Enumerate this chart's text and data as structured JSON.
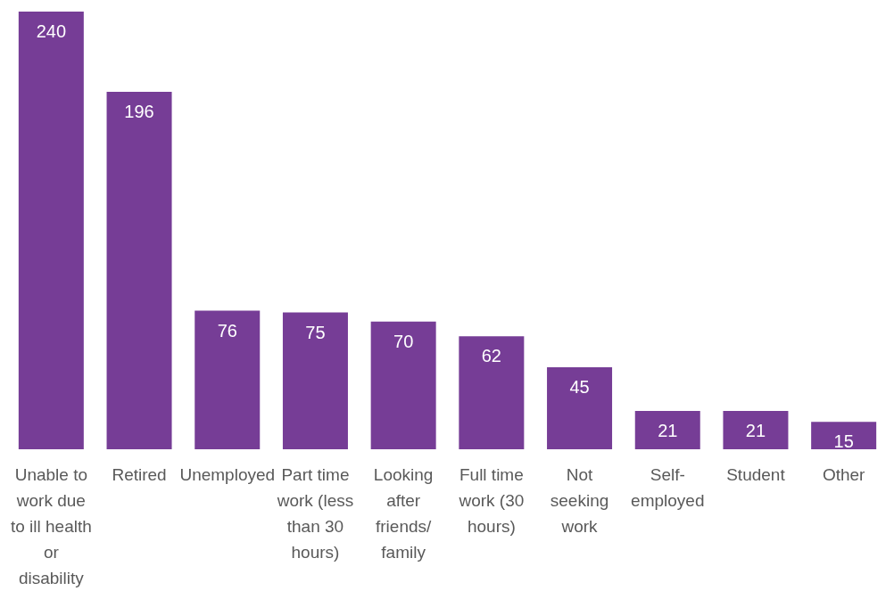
{
  "chart_data": {
    "type": "bar",
    "categories": [
      "Unable to work due to ill health or disability",
      "Retired",
      "Unemployed",
      "Part time work (less than 30 hours)",
      "Looking after friends/family",
      "Full time work (30 hours)",
      "Not seeking work",
      "Self-employed",
      "Student",
      "Other"
    ],
    "values": [
      240,
      196,
      76,
      75,
      70,
      62,
      45,
      21,
      21,
      15
    ],
    "color": "#763d96",
    "data_labels": true
  }
}
